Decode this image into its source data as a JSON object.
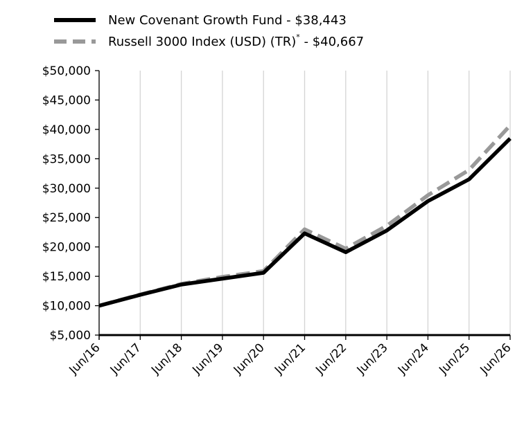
{
  "chart_data": {
    "type": "line",
    "x": [
      "Jun/16",
      "Jun/17",
      "Jun/18",
      "Jun/19",
      "Jun/20",
      "Jun/21",
      "Jun/22",
      "Jun/23",
      "Jun/24",
      "Jun/25",
      "Jun/26"
    ],
    "series": [
      {
        "name": "New Covenant Growth Fund - $38,443",
        "color": "#000000",
        "style": "solid",
        "values": [
          10000,
          11850,
          13600,
          14600,
          15600,
          22300,
          19100,
          22800,
          27800,
          31500,
          38443
        ]
      },
      {
        "name_main": "Russell 3000 Index (USD) (TR)",
        "name_sup": "*",
        "name_tail": " - $40,667",
        "color": "#999999",
        "style": "dashed",
        "values": [
          10000,
          11900,
          13700,
          14900,
          15900,
          23000,
          19700,
          23600,
          28800,
          33100,
          40667
        ]
      }
    ],
    "y_tick_labels": [
      "$5,000",
      "$10,000",
      "$15,000",
      "$20,000",
      "$25,000",
      "$30,000",
      "$35,000",
      "$40,000",
      "$45,000",
      "$50,000"
    ],
    "y_ticks": [
      5000,
      10000,
      15000,
      20000,
      25000,
      30000,
      35000,
      40000,
      45000,
      50000
    ],
    "ylim": [
      5000,
      50000
    ],
    "grid": "vertical",
    "legend_position": "top-left"
  }
}
